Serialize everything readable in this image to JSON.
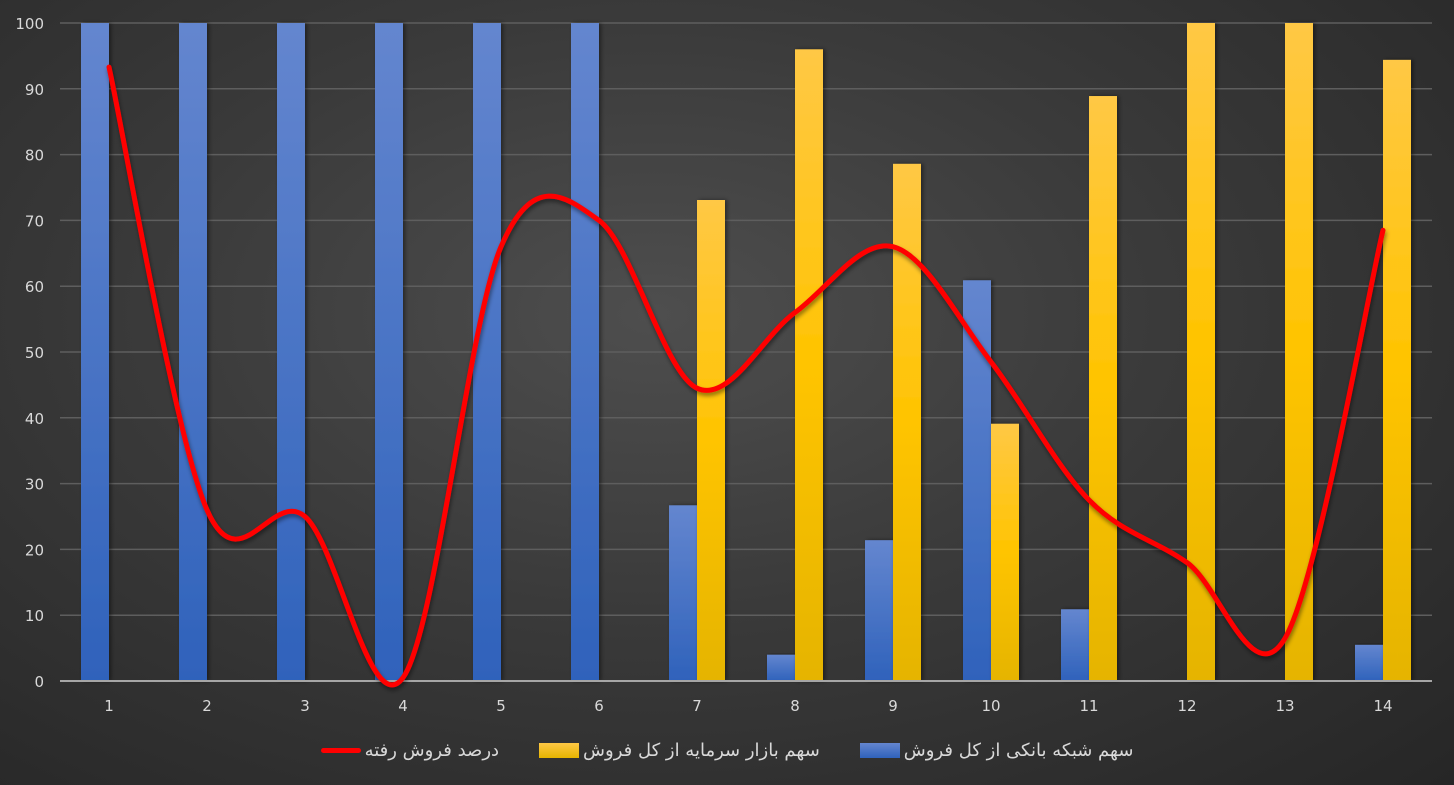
{
  "chart_data": {
    "type": "bar",
    "combo": "clustered-bar + smoothed-line",
    "title": "",
    "xlabel": "",
    "ylabel": "",
    "ylim": [
      0,
      100
    ],
    "y_ticks": [
      0,
      10,
      20,
      30,
      40,
      50,
      60,
      70,
      80,
      90,
      100
    ],
    "grid": true,
    "legend_position": "bottom",
    "categories": [
      "1",
      "2",
      "3",
      "4",
      "5",
      "6",
      "7",
      "8",
      "9",
      "10",
      "11",
      "12",
      "13",
      "14"
    ],
    "series": [
      {
        "name": "سهم شبکه بانکی از کل فروش",
        "type": "bar",
        "color": "#4472C4",
        "values": [
          100,
          100,
          100,
          100,
          100,
          100,
          26.7,
          4.0,
          21.4,
          60.9,
          10.9,
          0,
          0,
          5.5
        ]
      },
      {
        "name": "سهم بازار سرمایه از کل فروش",
        "type": "bar",
        "color": "#FFC000",
        "values": [
          0,
          0,
          0,
          0,
          0,
          0,
          73.1,
          96.0,
          78.6,
          39.1,
          88.9,
          100,
          100,
          94.4
        ]
      },
      {
        "name": "درصد فروش رفته",
        "type": "line",
        "color": "#FF0000",
        "smooth": true,
        "values": [
          93.3,
          26,
          25,
          0.5,
          66,
          70,
          44.5,
          56,
          66,
          48.5,
          27.5,
          18,
          6.5,
          68.5
        ]
      }
    ]
  },
  "legend": {
    "items": [
      {
        "label": "سهم شبکه بانکی از کل فروش",
        "color": "#4472C4",
        "kind": "box"
      },
      {
        "label": "سهم بازار سرمایه از کل فروش",
        "color": "#FFC000",
        "kind": "box"
      },
      {
        "label": "درصد فروش رفته",
        "color": "#FF0000",
        "kind": "line"
      }
    ]
  }
}
